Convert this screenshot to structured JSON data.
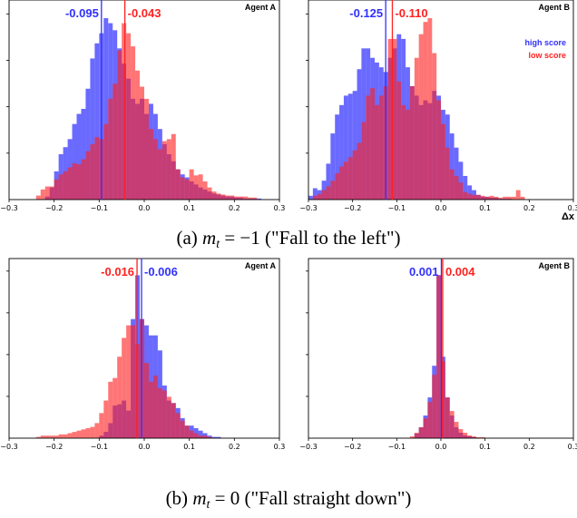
{
  "captions": {
    "a": {
      "pre": "(a) ",
      "var": "m",
      "sub": "t",
      "rest": " = −1 (\"Fall to the left\")"
    },
    "b": {
      "pre": "(b) ",
      "var": "m",
      "sub": "t",
      "rest": " = 0 (\"Fall straight down\")"
    }
  },
  "colors": {
    "high": "#3030ff",
    "low": "#ff2020",
    "overlap": "#5a1ecc"
  },
  "chart_data": [
    {
      "type": "histogram",
      "panel": "a",
      "title": "Agent A",
      "xlim": [
        -0.3,
        0.3
      ],
      "xticks": [
        "−0.3",
        "−0.2",
        "−0.1",
        "0.0",
        "0.1",
        "0.2",
        "0.3"
      ],
      "xlabel": "",
      "legend": null,
      "markers": [
        {
          "series": "high",
          "value": -0.095,
          "label": "-0.095"
        },
        {
          "series": "low",
          "value": -0.043,
          "label": "-0.043"
        }
      ],
      "series": [
        {
          "name": "high",
          "x0": -0.22,
          "width": 0.01,
          "values": [
            3,
            12,
            28,
            45,
            52,
            60,
            75,
            85,
            90,
            110,
            140,
            155,
            165,
            180,
            175,
            168,
            150,
            135,
            120,
            100,
            95,
            100,
            85,
            95,
            85,
            70,
            55,
            45,
            38,
            30,
            25,
            22,
            18,
            15,
            12,
            10,
            8,
            6,
            5,
            4,
            3,
            3,
            2,
            2,
            1,
            1,
            1,
            1,
            0,
            0,
            0
          ]
        },
        {
          "name": "low",
          "x0": -0.24,
          "width": 0.01,
          "values": [
            4,
            10,
            13,
            13,
            20,
            25,
            28,
            32,
            36,
            35,
            40,
            48,
            55,
            62,
            60,
            75,
            100,
            115,
            148,
            175,
            165,
            152,
            128,
            112,
            100,
            70,
            60,
            50,
            58,
            60,
            65,
            30,
            22,
            20,
            30,
            24,
            25,
            18,
            12,
            8,
            6,
            5,
            4,
            4,
            3,
            3,
            3,
            2,
            2,
            0,
            0,
            0,
            0,
            0
          ]
        }
      ]
    },
    {
      "type": "histogram",
      "panel": "b",
      "title": "Agent B",
      "xlim": [
        -0.3,
        0.3
      ],
      "xticks": [
        "−0.3",
        "−0.2",
        "−0.1",
        "0.0",
        "0.1",
        "0.2",
        "0.3"
      ],
      "xlabel": "Δx",
      "legend": "high score / low score",
      "legend_labels": {
        "high": "high score",
        "low": "low score"
      },
      "markers": [
        {
          "series": "high",
          "value": -0.125,
          "label": "-0.125"
        },
        {
          "series": "low",
          "value": -0.11,
          "label": "-0.110"
        }
      ],
      "series": [
        {
          "name": "high",
          "x0": -0.3,
          "width": 0.01,
          "values": [
            4,
            12,
            10,
            20,
            38,
            70,
            90,
            100,
            110,
            112,
            115,
            138,
            160,
            160,
            150,
            145,
            140,
            135,
            150,
            160,
            175,
            170,
            140,
            120,
            110,
            100,
            105,
            102,
            115,
            110,
            95,
            90,
            70,
            55,
            40,
            25,
            15,
            10,
            5,
            3,
            3,
            2,
            2,
            1,
            1,
            1,
            0,
            0,
            0,
            0
          ]
        },
        {
          "name": "low",
          "x0": -0.29,
          "width": 0.01,
          "values": [
            4,
            6,
            10,
            14,
            20,
            28,
            35,
            40,
            45,
            52,
            60,
            82,
            110,
            118,
            100,
            110,
            120,
            170,
            170,
            125,
            100,
            95,
            120,
            150,
            175,
            188,
            192,
            155,
            105,
            80,
            55,
            32,
            25,
            18,
            8,
            6,
            5,
            5,
            4,
            3,
            4,
            3,
            2,
            3,
            3,
            3,
            10,
            3,
            0,
            0
          ]
        }
      ]
    },
    {
      "type": "histogram",
      "panel": "b",
      "title": "Agent A",
      "xlim": [
        -0.3,
        0.3
      ],
      "xticks": [
        "−0.3",
        "−0.2",
        "−0.1",
        "0.0",
        "0.1",
        "0.2",
        "0.3"
      ],
      "xlabel": "",
      "legend": null,
      "markers": [
        {
          "series": "low",
          "value": -0.016,
          "label": "-0.016"
        },
        {
          "series": "high",
          "value": -0.006,
          "label": "-0.006"
        }
      ],
      "series": [
        {
          "name": "high",
          "x0": -0.1,
          "width": 0.01,
          "values": [
            2,
            5,
            12,
            26,
            27,
            30,
            22,
            95,
            130,
            95,
            90,
            82,
            82,
            70,
            42,
            30,
            28,
            24,
            16,
            10,
            10,
            8,
            6,
            4,
            2,
            1,
            1,
            0
          ]
        },
        {
          "name": "low",
          "x0": -0.24,
          "width": 0.01,
          "values": [
            1,
            2,
            2,
            2,
            2,
            3,
            3,
            4,
            5,
            6,
            7,
            8,
            9,
            12,
            20,
            30,
            45,
            48,
            65,
            80,
            90,
            90,
            75,
            95,
            60,
            45,
            50,
            40,
            38,
            33,
            28,
            20,
            14,
            10,
            6,
            4,
            2,
            2,
            1,
            0,
            0,
            0,
            0,
            0,
            0,
            0,
            0,
            0,
            0,
            0
          ]
        }
      ]
    },
    {
      "type": "histogram",
      "panel": "b",
      "title": "Agent B",
      "xlim": [
        -0.3,
        0.3
      ],
      "xticks": [
        "−0.3",
        "−0.2",
        "−0.1",
        "0.0",
        "0.1",
        "0.2",
        "0.3"
      ],
      "xlabel": "",
      "legend": null,
      "markers": [
        {
          "series": "high",
          "value": 0.001,
          "label": "0.001"
        },
        {
          "series": "low",
          "value": 0.004,
          "label": "0.004"
        }
      ],
      "series": [
        {
          "name": "high",
          "x0": -0.06,
          "width": 0.01,
          "values": [
            5,
            12,
            25,
            45,
            80,
            180,
            90,
            45,
            25,
            12,
            6,
            3,
            2,
            1,
            0
          ]
        },
        {
          "name": "low",
          "x0": -0.07,
          "width": 0.01,
          "values": [
            2,
            6,
            12,
            22,
            40,
            70,
            180,
            85,
            45,
            30,
            18,
            10,
            6,
            3,
            2,
            1,
            1,
            0,
            0,
            0,
            0,
            0,
            0,
            0
          ]
        }
      ]
    }
  ]
}
